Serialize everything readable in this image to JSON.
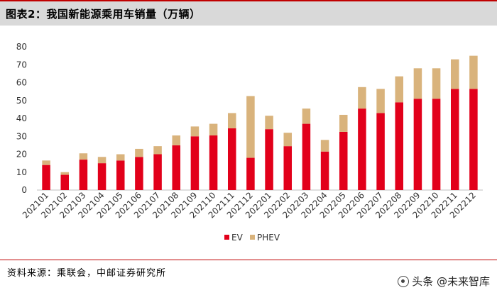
{
  "header": {
    "title": "图表2：我国新能源乘用车销量（万辆）"
  },
  "footer": {
    "source": "资料来源：乘联会，中邮证券研究所",
    "watermark": "头条 @未来智库"
  },
  "colors": {
    "ev": "#e2001a",
    "phev": "#d9b37c",
    "accent": "#c00000"
  },
  "chart_data": {
    "type": "bar",
    "stacked": true,
    "title": "",
    "xlabel": "",
    "ylabel": "",
    "ylim": [
      0,
      80
    ],
    "yticks": [
      0,
      10,
      20,
      30,
      40,
      50,
      60,
      70,
      80
    ],
    "grid": false,
    "legend": "bottom-center",
    "categories": [
      "202101",
      "202102",
      "202103",
      "202104",
      "202105",
      "202106",
      "202107",
      "202108",
      "202109",
      "202110",
      "202111",
      "202112",
      "202201",
      "202202",
      "202203",
      "202204",
      "202205",
      "202206",
      "202207",
      "202208",
      "202209",
      "202210",
      "202211",
      "202212"
    ],
    "series": [
      {
        "name": "EV",
        "color": "#e2001a",
        "values": [
          14,
          8.5,
          17,
          15,
          16.5,
          18.5,
          20,
          25,
          30,
          30.5,
          34.5,
          18,
          34,
          24.5,
          37,
          21.5,
          32.5,
          45.5,
          43,
          49,
          51,
          51,
          56.5,
          56.5
        ]
      },
      {
        "name": "PHEV",
        "color": "#d9b37c",
        "values": [
          2.5,
          1.5,
          3.5,
          3.5,
          3.5,
          4.5,
          4.5,
          5.5,
          5.5,
          6.5,
          8.5,
          34.5,
          7.5,
          7.5,
          8.5,
          6.5,
          9.5,
          12,
          13.5,
          14.5,
          17,
          17,
          16.5,
          18.5
        ]
      }
    ]
  }
}
